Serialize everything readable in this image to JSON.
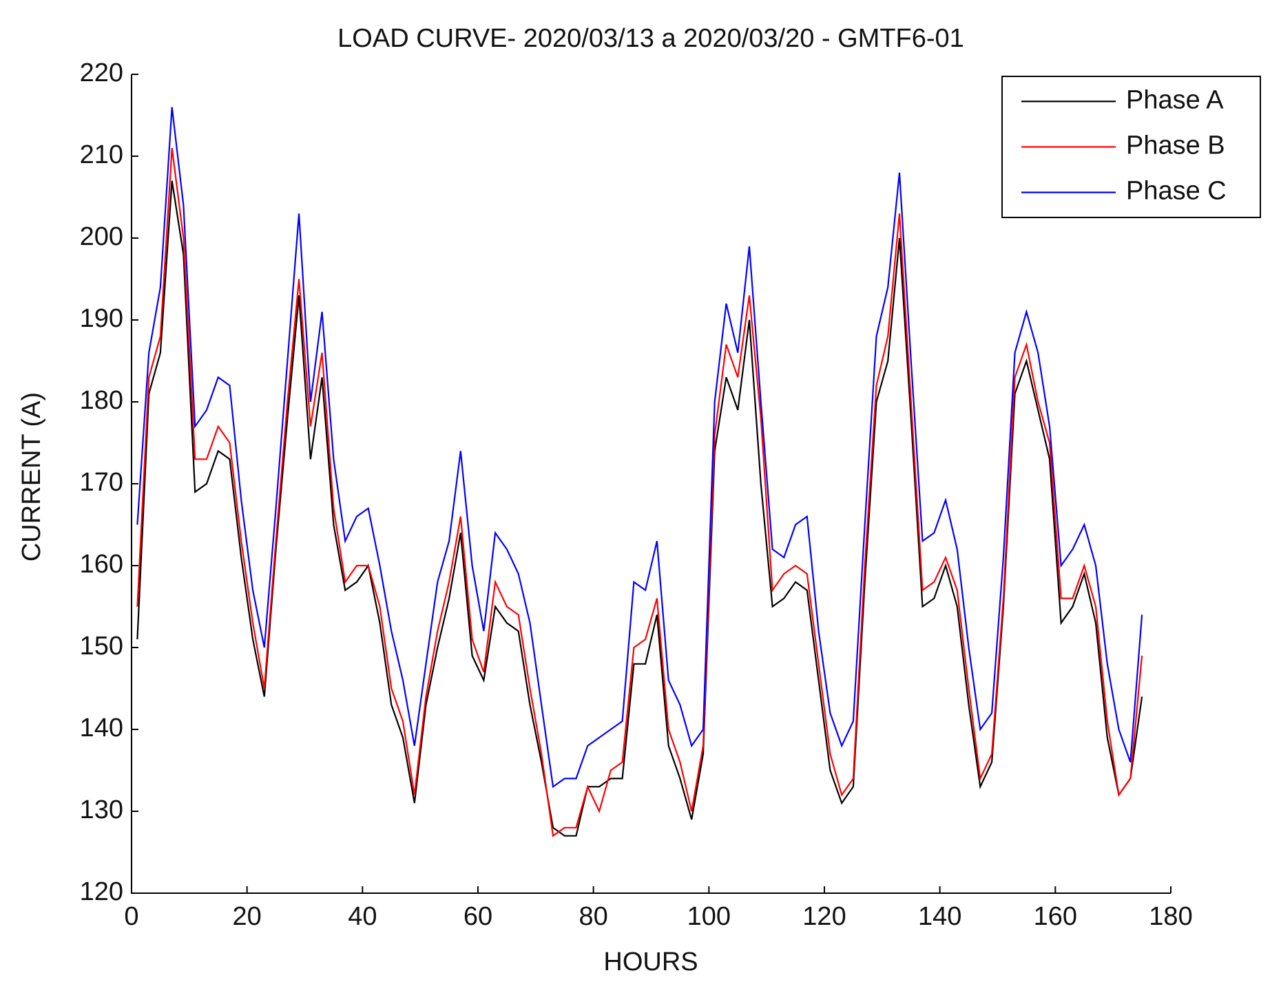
{
  "chart_data": {
    "type": "line",
    "title": "LOAD CURVE- 2020/03/13 a 2020/03/20 - GMTF6-01",
    "x_label": "HOURS",
    "y_label": "CURRENT (A)",
    "x": [
      1,
      3,
      5,
      7,
      9,
      11,
      13,
      15,
      17,
      19,
      21,
      23,
      25,
      27,
      29,
      31,
      33,
      35,
      37,
      39,
      41,
      43,
      45,
      47,
      49,
      51,
      53,
      55,
      57,
      59,
      61,
      63,
      65,
      67,
      69,
      71,
      73,
      75,
      77,
      79,
      81,
      83,
      85,
      87,
      89,
      91,
      93,
      95,
      97,
      99,
      101,
      103,
      105,
      107,
      109,
      111,
      113,
      115,
      117,
      119,
      121,
      123,
      125,
      127,
      129,
      131,
      133,
      135,
      137,
      139,
      141,
      143,
      145,
      147,
      149,
      151,
      153,
      155,
      157,
      159,
      161,
      163,
      165,
      167,
      169,
      171,
      173,
      175
    ],
    "series": [
      {
        "name": "Phase A",
        "color": "#000000",
        "values": [
          151,
          181,
          186,
          207,
          198,
          169,
          170,
          174,
          173,
          161,
          151,
          144,
          162,
          178,
          193,
          173,
          183,
          165,
          157,
          158,
          160,
          153,
          143,
          139,
          131,
          143,
          150,
          156,
          164,
          149,
          146,
          155,
          153,
          152,
          143,
          136,
          128,
          127,
          127,
          133,
          133,
          134,
          134,
          148,
          148,
          154,
          138,
          134,
          129,
          137,
          174,
          183,
          179,
          190,
          170,
          155,
          156,
          158,
          157,
          146,
          135,
          131,
          133,
          158,
          180,
          185,
          200,
          178,
          155,
          156,
          160,
          155,
          143,
          133,
          136,
          155,
          181,
          185,
          179,
          173,
          153,
          155,
          159,
          153,
          139,
          132,
          134,
          144
        ]
      },
      {
        "name": "Phase B",
        "color": "#ff0000",
        "values": [
          155,
          183,
          188,
          211,
          200,
          173,
          173,
          177,
          175,
          163,
          153,
          145,
          163,
          180,
          195,
          177,
          186,
          167,
          158,
          160,
          160,
          155,
          145,
          141,
          132,
          144,
          152,
          158,
          166,
          151,
          147,
          158,
          155,
          154,
          145,
          137,
          127,
          128,
          128,
          133,
          130,
          135,
          136,
          150,
          151,
          156,
          140,
          136,
          130,
          138,
          176,
          187,
          183,
          193,
          178,
          157,
          159,
          160,
          159,
          148,
          137,
          132,
          134,
          160,
          182,
          188,
          203,
          180,
          157,
          158,
          161,
          157,
          145,
          134,
          137,
          156,
          183,
          187,
          180,
          175,
          156,
          156,
          160,
          155,
          141,
          132,
          134,
          149
        ]
      },
      {
        "name": "Phase C",
        "color": "#0000ff",
        "values": [
          165,
          186,
          194,
          216,
          204,
          177,
          179,
          183,
          182,
          168,
          157,
          150,
          167,
          185,
          203,
          180,
          191,
          173,
          163,
          166,
          167,
          160,
          152,
          146,
          138,
          148,
          158,
          163,
          174,
          160,
          152,
          164,
          162,
          159,
          153,
          143,
          133,
          134,
          134,
          138,
          139,
          140,
          141,
          158,
          157,
          163,
          146,
          143,
          138,
          140,
          180,
          192,
          186,
          199,
          180,
          162,
          161,
          165,
          166,
          152,
          142,
          138,
          141,
          165,
          188,
          194,
          208,
          185,
          163,
          164,
          168,
          162,
          150,
          140,
          142,
          161,
          186,
          191,
          186,
          177,
          160,
          162,
          165,
          160,
          148,
          140,
          136,
          154
        ]
      }
    ],
    "xlim": [
      0,
      180
    ],
    "xticks": [
      0,
      20,
      40,
      60,
      80,
      100,
      120,
      140,
      160,
      180
    ],
    "ylim": [
      120,
      220
    ],
    "yticks": [
      120,
      130,
      140,
      150,
      160,
      170,
      180,
      190,
      200,
      210,
      220
    ],
    "legend": "upper right",
    "grid": false
  }
}
